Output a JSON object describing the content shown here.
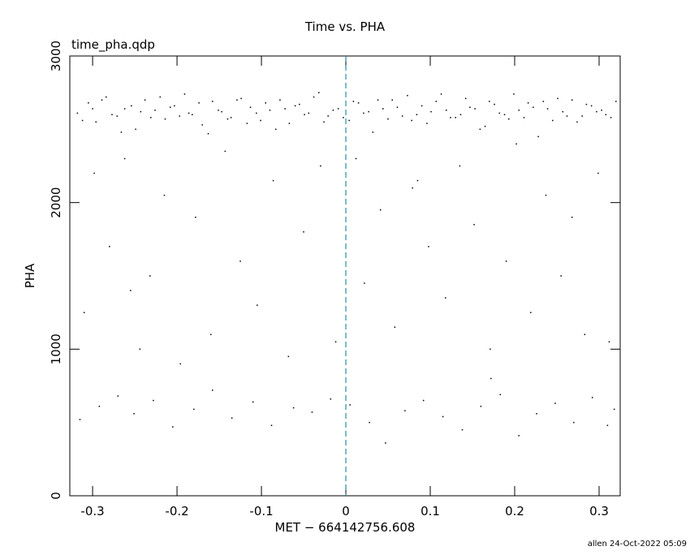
{
  "chart_data": {
    "type": "scatter",
    "title": "Time vs. PHA",
    "subtitle": "time_pha.qdp",
    "x_label": "MET − 664142756.608",
    "y_label": "PHA",
    "footer": "allen 24-Oct-2022 05:09",
    "xlim": [
      -0.327,
      0.325
    ],
    "ylim": [
      0,
      3000
    ],
    "xticks": [
      -0.3,
      -0.2,
      -0.1,
      0,
      0.1,
      0.2,
      0.3
    ],
    "yticks": [
      0,
      1000,
      2000,
      3000
    ],
    "vlines": [
      0
    ],
    "vline_color": "#1f8fa0",
    "color": "#000000",
    "x": [
      -0.318,
      -0.305,
      -0.296,
      -0.284,
      -0.271,
      -0.262,
      -0.249,
      -0.238,
      -0.226,
      -0.214,
      -0.203,
      -0.191,
      -0.182,
      -0.17,
      -0.158,
      -0.147,
      -0.136,
      -0.124,
      -0.113,
      -0.101,
      -0.09,
      -0.078,
      -0.067,
      -0.055,
      -0.044,
      -0.032,
      -0.021,
      -0.009,
      0.004,
      0.015,
      0.027,
      0.038,
      0.05,
      0.061,
      0.073,
      0.084,
      0.096,
      0.107,
      0.119,
      0.13,
      0.142,
      0.153,
      0.165,
      0.176,
      0.188,
      0.199,
      0.211,
      0.222,
      0.234,
      0.245,
      0.257,
      0.268,
      0.28,
      0.291,
      0.303,
      0.314,
      -0.312,
      -0.3,
      -0.289,
      -0.277,
      -0.266,
      -0.254,
      -0.243,
      -0.231,
      -0.22,
      -0.208,
      -0.197,
      -0.186,
      -0.174,
      -0.163,
      -0.151,
      -0.14,
      -0.129,
      -0.117,
      -0.106,
      -0.095,
      -0.083,
      -0.072,
      -0.06,
      -0.049,
      -0.038,
      -0.026,
      -0.015,
      -0.003,
      0.009,
      0.021,
      0.032,
      0.044,
      0.055,
      0.067,
      0.078,
      0.09,
      0.101,
      0.113,
      0.124,
      0.136,
      0.147,
      0.159,
      0.17,
      0.182,
      0.193,
      0.205,
      0.216,
      0.228,
      0.239,
      0.251,
      0.262,
      0.274,
      0.285,
      0.297,
      0.308,
      0.32,
      -0.315,
      -0.292,
      -0.27,
      -0.251,
      -0.228,
      -0.205,
      -0.18,
      -0.158,
      -0.135,
      -0.11,
      -0.088,
      -0.062,
      -0.04,
      -0.018,
      0.005,
      0.028,
      0.047,
      0.07,
      0.092,
      0.115,
      0.138,
      0.16,
      0.183,
      0.205,
      0.226,
      0.248,
      0.27,
      0.292,
      0.31,
      0.318,
      -0.31,
      -0.298,
      -0.28,
      -0.262,
      -0.244,
      -0.232,
      -0.215,
      -0.196,
      -0.178,
      -0.16,
      -0.143,
      -0.125,
      -0.105,
      -0.086,
      -0.068,
      -0.05,
      -0.03,
      -0.012,
      0.012,
      0.022,
      0.041,
      0.058,
      0.079,
      0.098,
      0.118,
      0.135,
      0.152,
      0.171,
      0.19,
      0.202,
      0.219,
      0.237,
      0.255,
      0.268,
      0.283,
      0.299,
      0.312,
      -0.255,
      0.085,
      0.172
    ],
    "values": [
      2610,
      2680,
      2550,
      2720,
      2590,
      2640,
      2500,
      2700,
      2630,
      2570,
      2660,
      2740,
      2600,
      2530,
      2690,
      2620,
      2580,
      2710,
      2650,
      2560,
      2630,
      2700,
      2540,
      2670,
      2610,
      2750,
      2590,
      2640,
      2560,
      2680,
      2620,
      2700,
      2570,
      2650,
      2730,
      2600,
      2540,
      2690,
      2630,
      2580,
      2710,
      2640,
      2520,
      2670,
      2600,
      2740,
      2580,
      2650,
      2690,
      2560,
      2620,
      2700,
      2590,
      2660,
      2630,
      2580,
      2560,
      2640,
      2700,
      2600,
      2480,
      2660,
      2620,
      2580,
      2720,
      2650,
      2590,
      2610,
      2680,
      2470,
      2630,
      2570,
      2700,
      2540,
      2610,
      2680,
      2500,
      2640,
      2660,
      2600,
      2720,
      2550,
      2630,
      2580,
      2690,
      2610,
      2480,
      2640,
      2700,
      2590,
      2560,
      2660,
      2620,
      2740,
      2580,
      2600,
      2650,
      2500,
      2690,
      2610,
      2570,
      2630,
      2680,
      2450,
      2640,
      2710,
      2590,
      2550,
      2670,
      2620,
      2600,
      2690,
      520,
      610,
      680,
      560,
      650,
      470,
      590,
      720,
      530,
      640,
      480,
      600,
      570,
      660,
      620,
      500,
      360,
      580,
      650,
      540,
      450,
      610,
      690,
      410,
      560,
      630,
      500,
      670,
      480,
      590,
      1250,
      2200,
      1700,
      2300,
      1000,
      1500,
      2050,
      900,
      1900,
      1100,
      2350,
      1600,
      1300,
      2150,
      950,
      1800,
      2250,
      1050,
      2300,
      1450,
      1950,
      1150,
      2100,
      1700,
      1350,
      2250,
      1850,
      1000,
      1600,
      2400,
      1250,
      2050,
      1500,
      1900,
      1100,
      2200,
      1050,
      1400,
      2150,
      800
    ]
  }
}
